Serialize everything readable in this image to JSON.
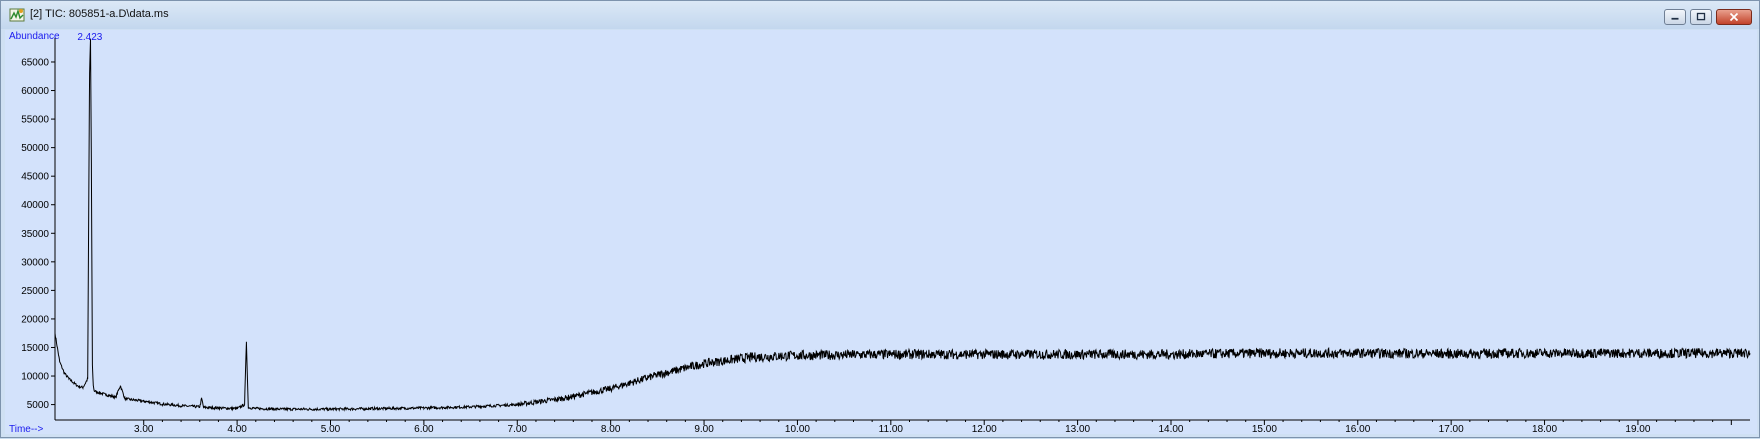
{
  "window": {
    "title": "[2] TIC: 805851-a.D\\data.ms",
    "buttons": {
      "minimize": "minimize",
      "restore": "restore",
      "close": "close"
    }
  },
  "colors": {
    "plot_bg": "#d3e2fb",
    "axis_label": "#1a1aee",
    "trace": "#000000",
    "axis": "#000000"
  },
  "chart_data": {
    "type": "line",
    "title": "",
    "xlabel": "Time-->",
    "ylabel": "Abundance",
    "xlim": [
      2.05,
      20.2
    ],
    "ylim": [
      2300,
      69200
    ],
    "x_ticks": [
      3.0,
      4.0,
      5.0,
      6.0,
      7.0,
      8.0,
      9.0,
      10.0,
      11.0,
      12.0,
      13.0,
      14.0,
      15.0,
      16.0,
      17.0,
      18.0,
      19.0
    ],
    "x_tick_labels": [
      "3.00",
      "4.00",
      "5.00",
      "6.00",
      "7.00",
      "8.00",
      "9.00",
      "10.00",
      "11.00",
      "12.00",
      "13.00",
      "14.00",
      "15.00",
      "16.00",
      "17.00",
      "18.00",
      "19.00"
    ],
    "y_ticks": [
      5000,
      10000,
      15000,
      20000,
      25000,
      30000,
      35000,
      40000,
      45000,
      50000,
      55000,
      60000,
      65000
    ],
    "y_tick_labels": [
      "5000",
      "10000",
      "15000",
      "20000",
      "25000",
      "30000",
      "35000",
      "40000",
      "45000",
      "50000",
      "55000",
      "60000",
      "65000"
    ],
    "grid": false,
    "annotations": [
      {
        "x": 2.423,
        "y": 69000,
        "text": "2.423"
      }
    ],
    "series": [
      {
        "x": [
          2.05,
          2.1,
          2.15,
          2.2,
          2.25,
          2.3,
          2.35,
          2.4,
          2.42,
          2.43,
          2.44,
          2.45,
          2.46,
          2.47,
          2.5,
          2.6,
          2.7,
          2.75,
          2.8,
          3.0,
          3.2,
          3.4,
          3.6,
          3.62,
          3.64,
          3.8,
          4.0,
          4.08,
          4.1,
          4.12,
          4.2,
          4.5,
          5.0,
          5.5,
          6.0,
          6.5,
          7.0,
          7.5,
          8.0,
          8.5,
          9.0,
          9.5,
          10.0,
          11.0,
          12.0,
          13.0,
          14.0,
          15.0,
          16.0,
          17.0,
          18.0,
          19.0,
          19.5,
          20.0,
          20.2
        ],
        "y": [
          17500,
          12500,
          10500,
          9500,
          8800,
          8200,
          8000,
          9500,
          63000,
          69000,
          46000,
          12000,
          8300,
          7400,
          7200,
          6700,
          6300,
          8300,
          6000,
          5600,
          5100,
          4800,
          4600,
          6100,
          4500,
          4400,
          4300,
          5000,
          16000,
          4500,
          4300,
          4200,
          4200,
          4300,
          4400,
          4600,
          5000,
          6100,
          7800,
          10200,
          12200,
          13300,
          13600,
          13800,
          13800,
          13800,
          13800,
          14000,
          14000,
          13900,
          14000,
          14000,
          14000,
          14000,
          14000
        ]
      }
    ]
  }
}
